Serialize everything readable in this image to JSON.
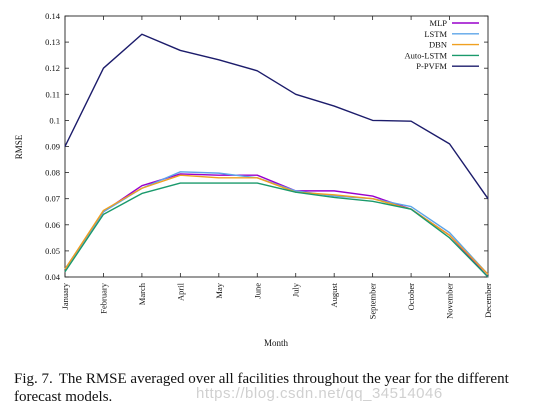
{
  "chart_data": {
    "type": "line",
    "xlabel": "Month",
    "ylabel": "RMSE",
    "ylim": [
      0.04,
      0.14
    ],
    "yticks": [
      "0.04",
      "0.05",
      "0.06",
      "0.07",
      "0.08",
      "0.09",
      "0.1",
      "0.11",
      "0.12",
      "0.13",
      "0.14"
    ],
    "categories": [
      "January",
      "February",
      "March",
      "April",
      "May",
      "June",
      "July",
      "August",
      "September",
      "October",
      "November",
      "December"
    ],
    "legend_position": "top-right",
    "series": [
      {
        "name": "MLP",
        "color": "#9900cc",
        "values": [
          0.043,
          0.065,
          0.075,
          0.0795,
          0.079,
          0.079,
          0.073,
          0.073,
          0.071,
          0.066,
          0.056,
          0.04
        ]
      },
      {
        "name": "LSTM",
        "color": "#5da5e8",
        "values": [
          0.043,
          0.065,
          0.074,
          0.0803,
          0.0798,
          0.078,
          0.073,
          0.071,
          0.07,
          0.067,
          0.057,
          0.041
        ]
      },
      {
        "name": "DBN",
        "color": "#f0a020",
        "values": [
          0.043,
          0.0655,
          0.074,
          0.079,
          0.078,
          0.078,
          0.0725,
          0.0715,
          0.07,
          0.066,
          0.056,
          0.041
        ]
      },
      {
        "name": "Auto-LSTM",
        "color": "#1a9a6c",
        "values": [
          0.042,
          0.064,
          0.072,
          0.076,
          0.076,
          0.076,
          0.0725,
          0.0705,
          0.069,
          0.066,
          0.055,
          0.04
        ]
      },
      {
        "name": "P-PVFM",
        "color": "#1c1c6b",
        "values": [
          0.09,
          0.12,
          0.133,
          0.1268,
          0.1232,
          0.119,
          0.11,
          0.1055,
          0.1,
          0.0997,
          0.091,
          0.07
        ]
      }
    ]
  },
  "caption": {
    "label": "Fig. 7.",
    "text": "The RMSE averaged over all facilities throughout the year for the different forecast models."
  },
  "watermark": "https://blog.csdn.net/qq_34514046"
}
